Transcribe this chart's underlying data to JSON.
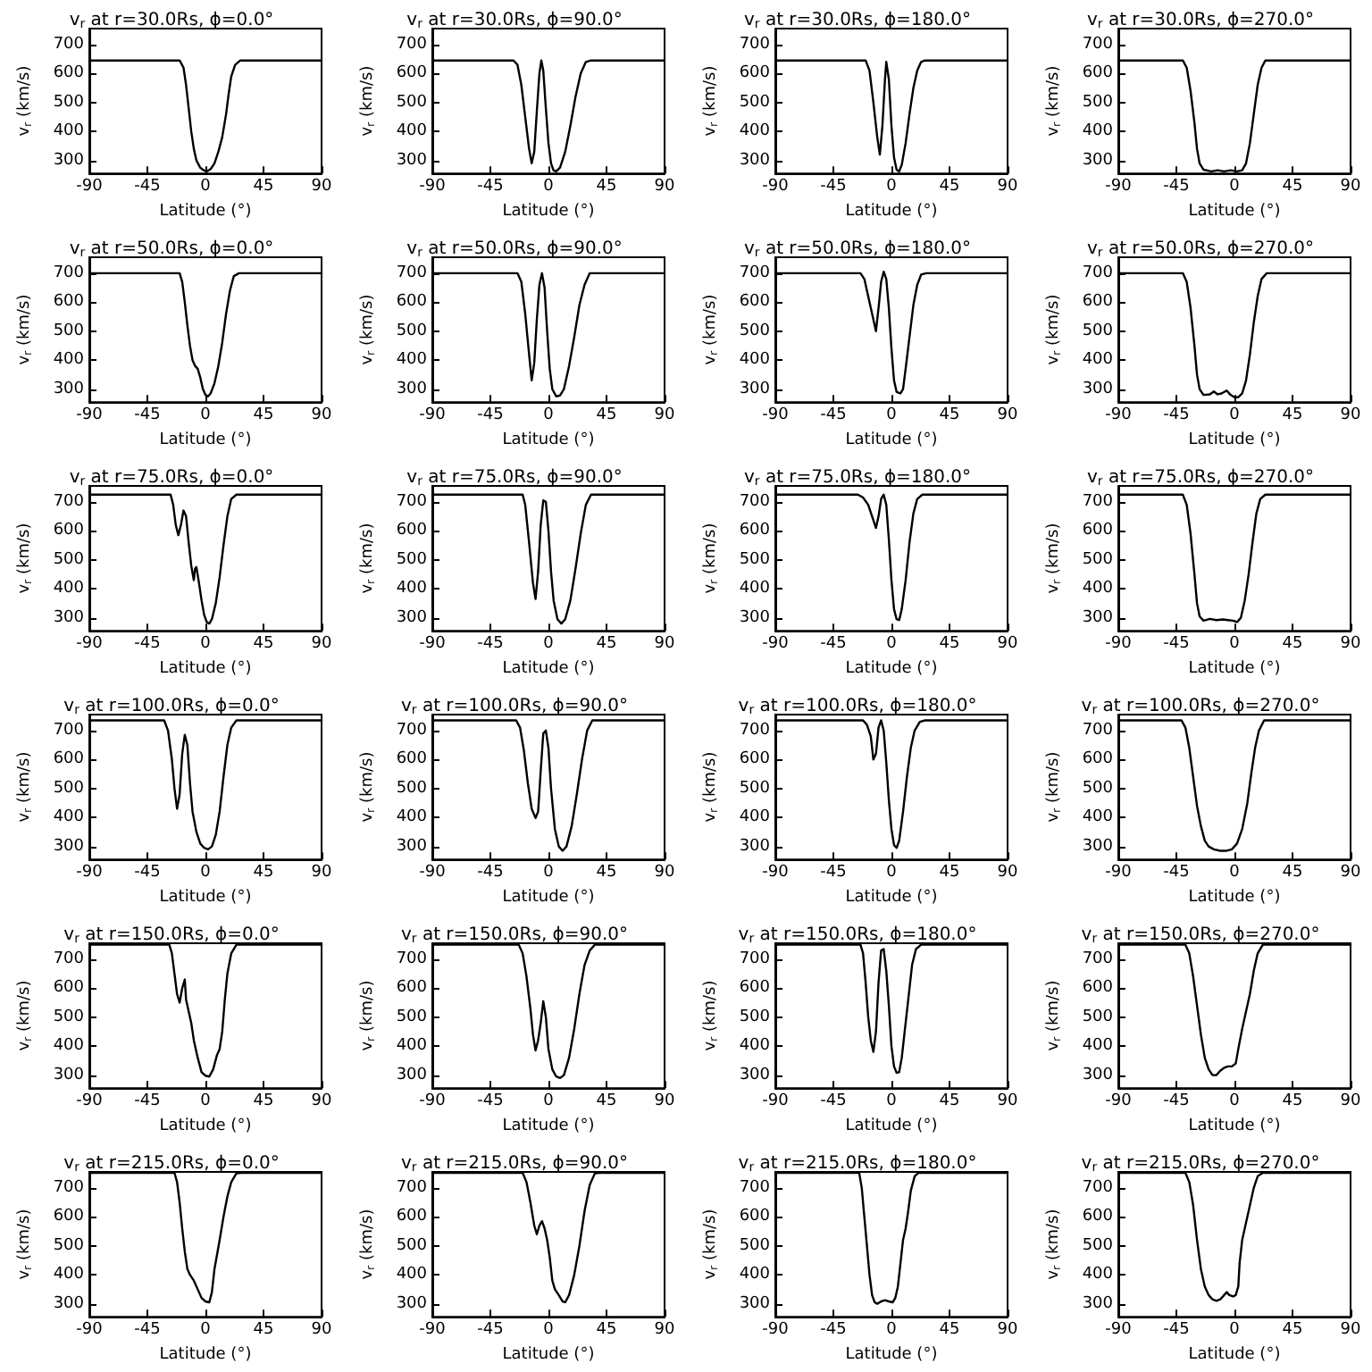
{
  "chart_data": [
    {
      "type": "line",
      "title": "v$_{r}$ at r=30.0Rs, ϕ=0.0°",
      "xlabel": "Latitude (°)",
      "ylabel": "v$_{r}$ (km/s)",
      "color": "#000000",
      "xlim": [
        -90,
        90
      ],
      "xticks": [
        -90,
        -45,
        0,
        45,
        90
      ],
      "ylim": [
        255,
        755
      ],
      "yticks": [
        300,
        400,
        500,
        600,
        700
      ],
      "x": [
        -90,
        -20,
        -17,
        -15,
        -13,
        -11,
        -9,
        -7,
        -4,
        -1,
        1,
        4,
        7,
        10,
        13,
        16,
        18,
        20,
        23,
        27,
        90
      ],
      "values": [
        645,
        645,
        620,
        560,
        480,
        400,
        340,
        300,
        275,
        265,
        262,
        270,
        290,
        330,
        380,
        460,
        530,
        590,
        630,
        645,
        645
      ]
    },
    {
      "type": "line",
      "title": "v$_{r}$ at r=30.0Rs, ϕ=90.0°",
      "xlabel": "Latitude (°)",
      "ylabel": "v$_{r}$ (km/s)",
      "color": "#000000",
      "xlim": [
        -90,
        90
      ],
      "xticks": [
        -90,
        -45,
        0,
        45,
        90
      ],
      "ylim": [
        255,
        755
      ],
      "yticks": [
        300,
        400,
        500,
        600,
        700
      ],
      "x": [
        -90,
        -27,
        -24,
        -21,
        -18,
        -15,
        -13,
        -11,
        -9,
        -7,
        -5.5,
        -4,
        -2,
        0,
        2,
        4,
        6,
        9,
        13,
        17,
        21,
        25,
        29,
        33,
        90
      ],
      "values": [
        645,
        645,
        630,
        560,
        450,
        340,
        290,
        330,
        470,
        600,
        645,
        610,
        480,
        360,
        290,
        265,
        262,
        275,
        330,
        420,
        520,
        600,
        640,
        645,
        645
      ]
    },
    {
      "type": "line",
      "title": "v$_{r}$ at r=30.0Rs, ϕ=180.0°",
      "xlabel": "Latitude (°)",
      "ylabel": "v$_{r}$ (km/s)",
      "color": "#000000",
      "xlim": [
        -90,
        90
      ],
      "xticks": [
        -90,
        -45,
        0,
        45,
        90
      ],
      "ylim": [
        255,
        755
      ],
      "yticks": [
        300,
        400,
        500,
        600,
        700
      ],
      "x": [
        -90,
        -20,
        -17,
        -14,
        -11,
        -9,
        -7,
        -5,
        -4,
        -2,
        0,
        2,
        4,
        6,
        8,
        11,
        14,
        17,
        20,
        23,
        26,
        90
      ],
      "values": [
        645,
        645,
        610,
        500,
        380,
        320,
        420,
        580,
        640,
        580,
        420,
        310,
        268,
        262,
        285,
        360,
        460,
        550,
        610,
        640,
        645,
        645
      ]
    },
    {
      "type": "line",
      "title": "v$_{r}$ at r=30.0Rs, ϕ=270.0°",
      "xlabel": "Latitude (°)",
      "ylabel": "v$_{r}$ (km/s)",
      "color": "#000000",
      "xlim": [
        -90,
        90
      ],
      "xticks": [
        -90,
        -45,
        0,
        45,
        90
      ],
      "ylim": [
        255,
        755
      ],
      "yticks": [
        300,
        400,
        500,
        600,
        700
      ],
      "x": [
        -90,
        -40,
        -37,
        -34,
        -31,
        -29,
        -27,
        -24,
        -18,
        -13,
        -8,
        -3,
        2,
        6,
        9,
        12,
        15,
        18,
        21,
        24,
        90
      ],
      "values": [
        645,
        645,
        620,
        540,
        430,
        340,
        290,
        268,
        262,
        266,
        262,
        266,
        262,
        266,
        290,
        360,
        460,
        560,
        620,
        645,
        645
      ]
    },
    {
      "type": "line",
      "title": "v$_{r}$ at r=50.0Rs, ϕ=0.0°",
      "xlabel": "Latitude (°)",
      "ylabel": "v$_{r}$ (km/s)",
      "color": "#000000",
      "xlim": [
        -90,
        90
      ],
      "xticks": [
        -90,
        -45,
        0,
        45,
        90
      ],
      "ylim": [
        255,
        755
      ],
      "yticks": [
        300,
        400,
        500,
        600,
        700
      ],
      "x": [
        -90,
        -20,
        -18,
        -16,
        -14,
        -12,
        -10,
        -8,
        -6,
        -4,
        -2,
        0,
        2,
        4,
        7,
        10,
        13,
        16,
        19,
        22,
        26,
        90
      ],
      "values": [
        700,
        700,
        670,
        600,
        520,
        450,
        400,
        380,
        370,
        340,
        300,
        280,
        275,
        285,
        320,
        380,
        460,
        560,
        640,
        690,
        700,
        700
      ]
    },
    {
      "type": "line",
      "title": "v$_{r}$ at r=50.0Rs, ϕ=90.0°",
      "xlabel": "Latitude (°)",
      "ylabel": "v$_{r}$ (km/s)",
      "color": "#000000",
      "xlim": [
        -90,
        90
      ],
      "xticks": [
        -90,
        -45,
        0,
        45,
        90
      ],
      "ylim": [
        255,
        755
      ],
      "yticks": [
        300,
        400,
        500,
        600,
        700
      ],
      "x": [
        -90,
        -24,
        -21,
        -18,
        -15,
        -13,
        -11,
        -9,
        -7,
        -5,
        -3,
        -1,
        1,
        3,
        6,
        9,
        12,
        16,
        20,
        24,
        28,
        32,
        90
      ],
      "values": [
        700,
        700,
        670,
        560,
        420,
        330,
        390,
        540,
        660,
        700,
        650,
        500,
        370,
        300,
        275,
        278,
        300,
        380,
        480,
        590,
        660,
        700,
        700
      ]
    },
    {
      "type": "line",
      "title": "v$_{r}$ at r=50.0Rs, ϕ=180.0°",
      "xlabel": "Latitude (°)",
      "ylabel": "v$_{r}$ (km/s)",
      "color": "#000000",
      "xlim": [
        -90,
        90
      ],
      "xticks": [
        -90,
        -45,
        0,
        45,
        90
      ],
      "ylim": [
        255,
        755
      ],
      "yticks": [
        300,
        400,
        500,
        600,
        700
      ],
      "x": [
        -90,
        -24,
        -21,
        -18,
        -15,
        -12,
        -10,
        -8,
        -6,
        -4,
        -2,
        0,
        2,
        4,
        7,
        9,
        11,
        14,
        17,
        20,
        23,
        27,
        90
      ],
      "values": [
        700,
        700,
        680,
        620,
        560,
        500,
        580,
        670,
        705,
        680,
        580,
        440,
        330,
        290,
        285,
        300,
        370,
        480,
        590,
        660,
        695,
        700,
        700
      ]
    },
    {
      "type": "line",
      "title": "v$_{r}$ at r=50.0Rs, ϕ=270.0°",
      "xlabel": "Latitude (°)",
      "ylabel": "v$_{r}$ (km/s)",
      "color": "#000000",
      "xlim": [
        -90,
        90
      ],
      "xticks": [
        -90,
        -45,
        0,
        45,
        90
      ],
      "ylim": [
        255,
        755
      ],
      "yticks": [
        300,
        400,
        500,
        600,
        700
      ],
      "x": [
        -90,
        -40,
        -37,
        -34,
        -31,
        -29,
        -27,
        -24,
        -19,
        -16,
        -13,
        -10,
        -6,
        -3,
        0,
        3,
        6,
        9,
        12,
        15,
        18,
        21,
        25,
        90
      ],
      "values": [
        700,
        700,
        670,
        580,
        450,
        350,
        300,
        280,
        282,
        292,
        282,
        285,
        295,
        280,
        272,
        272,
        285,
        330,
        420,
        530,
        620,
        680,
        700,
        700
      ]
    },
    {
      "type": "line",
      "title": "v$_{r}$ at r=75.0Rs, ϕ=0.0°",
      "xlabel": "Latitude (°)",
      "ylabel": "v$_{r}$ (km/s)",
      "color": "#000000",
      "xlim": [
        -90,
        90
      ],
      "xticks": [
        -90,
        -45,
        0,
        45,
        90
      ],
      "ylim": [
        255,
        755
      ],
      "yticks": [
        300,
        400,
        500,
        600,
        700
      ],
      "x": [
        -90,
        -27,
        -25,
        -23,
        -21,
        -19,
        -17,
        -15,
        -13,
        -11,
        -9,
        -8,
        -7,
        -5,
        -3,
        -1,
        1,
        3,
        5,
        8,
        11,
        14,
        17,
        20,
        24,
        90
      ],
      "values": [
        725,
        725,
        690,
        620,
        585,
        620,
        670,
        650,
        560,
        480,
        430,
        470,
        475,
        420,
        360,
        310,
        285,
        280,
        295,
        350,
        440,
        550,
        650,
        710,
        725,
        725
      ]
    },
    {
      "type": "line",
      "title": "v$_{r}$ at r=75.0Rs, ϕ=90.0°",
      "xlabel": "Latitude (°)",
      "ylabel": "v$_{r}$ (km/s)",
      "color": "#000000",
      "xlim": [
        -90,
        90
      ],
      "xticks": [
        -90,
        -45,
        0,
        45,
        90
      ],
      "ylim": [
        255,
        755
      ],
      "yticks": [
        300,
        400,
        500,
        600,
        700
      ],
      "x": [
        -90,
        -20,
        -18,
        -15,
        -12,
        -10,
        -8,
        -6,
        -4,
        -2,
        0,
        2,
        4,
        7,
        10,
        13,
        17,
        21,
        25,
        29,
        33,
        90
      ],
      "values": [
        725,
        725,
        690,
        560,
        420,
        365,
        460,
        620,
        705,
        700,
        600,
        460,
        360,
        295,
        280,
        295,
        360,
        470,
        590,
        690,
        725,
        725
      ]
    },
    {
      "type": "line",
      "title": "v$_{r}$ at r=75.0Rs, ϕ=180.0°",
      "xlabel": "Latitude (°)",
      "ylabel": "v$_{r}$ (km/s)",
      "color": "#000000",
      "xlim": [
        -90,
        90
      ],
      "xticks": [
        -90,
        -45,
        0,
        45,
        90
      ],
      "ylim": [
        255,
        755
      ],
      "yticks": [
        300,
        400,
        500,
        600,
        700
      ],
      "x": [
        -90,
        -26,
        -22,
        -18,
        -15,
        -12,
        -10,
        -8,
        -6,
        -4,
        -2,
        0,
        2,
        4,
        6,
        8,
        11,
        14,
        17,
        20,
        24,
        90
      ],
      "values": [
        725,
        725,
        715,
        690,
        650,
        610,
        650,
        710,
        725,
        690,
        570,
        430,
        330,
        295,
        292,
        330,
        430,
        560,
        660,
        710,
        725,
        725
      ]
    },
    {
      "type": "line",
      "title": "v$_{r}$ at r=75.0Rs, ϕ=270.0°",
      "xlabel": "Latitude (°)",
      "ylabel": "v$_{r}$ (km/s)",
      "color": "#000000",
      "xlim": [
        -90,
        90
      ],
      "xticks": [
        -90,
        -45,
        0,
        45,
        90
      ],
      "ylim": [
        255,
        755
      ],
      "yticks": [
        300,
        400,
        500,
        600,
        700
      ],
      "x": [
        -90,
        -40,
        -37,
        -34,
        -31,
        -29,
        -27,
        -24,
        -19,
        -14,
        -9,
        -5,
        -1,
        2,
        5,
        8,
        11,
        14,
        17,
        20,
        24,
        90
      ],
      "values": [
        725,
        725,
        690,
        590,
        450,
        350,
        305,
        290,
        296,
        292,
        294,
        292,
        290,
        285,
        300,
        360,
        450,
        560,
        660,
        710,
        725,
        725
      ]
    },
    {
      "type": "line",
      "title": "v$_{r}$ at r=100.0Rs, ϕ=0.0°",
      "xlabel": "Latitude (°)",
      "ylabel": "v$_{r}$ (km/s)",
      "color": "#000000",
      "xlim": [
        -90,
        90
      ],
      "xticks": [
        -90,
        -45,
        0,
        45,
        90
      ],
      "ylim": [
        255,
        755
      ],
      "yticks": [
        300,
        400,
        500,
        600,
        700
      ],
      "x": [
        -90,
        -32,
        -29,
        -26,
        -24,
        -22,
        -20,
        -18,
        -16,
        -14,
        -12,
        -10,
        -7,
        -4,
        -1,
        2,
        5,
        8,
        11,
        14,
        17,
        20,
        24,
        90
      ],
      "values": [
        735,
        735,
        700,
        600,
        500,
        430,
        480,
        620,
        685,
        650,
        520,
        420,
        350,
        310,
        295,
        290,
        300,
        340,
        420,
        540,
        650,
        710,
        735,
        735
      ]
    },
    {
      "type": "line",
      "title": "v$_{r}$ at r=100.0Rs, ϕ=90.0°",
      "xlabel": "Latitude (°)",
      "ylabel": "v$_{r}$ (km/s)",
      "color": "#000000",
      "xlim": [
        -90,
        90
      ],
      "xticks": [
        -90,
        -45,
        0,
        45,
        90
      ],
      "ylim": [
        255,
        755
      ],
      "yticks": [
        300,
        400,
        500,
        600,
        700
      ],
      "x": [
        -90,
        -25,
        -22,
        -19,
        -16,
        -13,
        -10,
        -8,
        -6,
        -4,
        -2,
        0,
        2,
        5,
        8,
        11,
        14,
        18,
        22,
        26,
        30,
        34,
        90
      ],
      "values": [
        735,
        735,
        710,
        630,
        520,
        430,
        398,
        420,
        560,
        690,
        700,
        640,
        500,
        360,
        300,
        285,
        300,
        370,
        480,
        600,
        700,
        735,
        735
      ]
    },
    {
      "type": "line",
      "title": "v$_{r}$ at r=100.0Rs, ϕ=180.0°",
      "xlabel": "Latitude (°)",
      "ylabel": "v$_{r}$ (km/s)",
      "color": "#000000",
      "xlim": [
        -90,
        90
      ],
      "xticks": [
        -90,
        -45,
        0,
        45,
        90
      ],
      "ylim": [
        255,
        755
      ],
      "yticks": [
        300,
        400,
        500,
        600,
        700
      ],
      "x": [
        -90,
        -22,
        -19,
        -16,
        -14,
        -12,
        -10,
        -8,
        -6,
        -4,
        -2,
        0,
        2,
        4,
        6,
        9,
        12,
        15,
        18,
        22,
        26,
        90
      ],
      "values": [
        735,
        735,
        720,
        680,
        600,
        620,
        710,
        735,
        700,
        590,
        460,
        360,
        305,
        295,
        320,
        420,
        540,
        640,
        700,
        730,
        735,
        735
      ]
    },
    {
      "type": "line",
      "title": "v$_{r}$ at r=100.0Rs, ϕ=270.0°",
      "xlabel": "Latitude (°)",
      "ylabel": "v$_{r}$ (km/s)",
      "color": "#000000",
      "xlim": [
        -90,
        90
      ],
      "xticks": [
        -90,
        -45,
        0,
        45,
        90
      ],
      "ylim": [
        255,
        755
      ],
      "yticks": [
        300,
        400,
        500,
        600,
        700
      ],
      "x": [
        -90,
        -41,
        -38,
        -35,
        -32,
        -29,
        -26,
        -23,
        -20,
        -16,
        -11,
        -6,
        -2,
        2,
        6,
        10,
        13,
        16,
        19,
        23,
        90
      ],
      "values": [
        735,
        735,
        710,
        640,
        540,
        440,
        370,
        320,
        300,
        290,
        285,
        285,
        290,
        310,
        360,
        450,
        550,
        640,
        700,
        735,
        735
      ]
    },
    {
      "type": "line",
      "title": "v$_{r}$ at r=150.0Rs, ϕ=0.0°",
      "xlabel": "Latitude (°)",
      "ylabel": "v$_{r}$ (km/s)",
      "color": "#000000",
      "xlim": [
        -90,
        90
      ],
      "xticks": [
        -90,
        -45,
        0,
        45,
        90
      ],
      "ylim": [
        255,
        755
      ],
      "yticks": [
        300,
        400,
        500,
        600,
        700
      ],
      "x": [
        -90,
        -28,
        -26,
        -24,
        -22,
        -20,
        -18,
        -16,
        -15,
        -13,
        -11,
        -9,
        -6,
        -3,
        0,
        3,
        6,
        9,
        11,
        13,
        15,
        17,
        20,
        24,
        90
      ],
      "values": [
        750,
        750,
        720,
        650,
        580,
        550,
        600,
        630,
        560,
        520,
        480,
        420,
        360,
        310,
        298,
        295,
        320,
        370,
        390,
        450,
        560,
        650,
        720,
        750,
        750
      ]
    },
    {
      "type": "line",
      "title": "v$_{r}$ at r=150.0Rs, ϕ=90.0°",
      "xlabel": "Latitude (°)",
      "ylabel": "v$_{r}$ (km/s)",
      "color": "#000000",
      "xlim": [
        -90,
        90
      ],
      "xticks": [
        -90,
        -45,
        0,
        45,
        90
      ],
      "ylim": [
        255,
        755
      ],
      "yticks": [
        300,
        400,
        500,
        600,
        700
      ],
      "x": [
        -90,
        -23,
        -20,
        -17,
        -14,
        -12,
        -10,
        -8,
        -6,
        -4,
        -2,
        0,
        3,
        6,
        9,
        12,
        16,
        20,
        24,
        28,
        32,
        36,
        90
      ],
      "values": [
        750,
        750,
        720,
        640,
        530,
        440,
        385,
        420,
        480,
        555,
        500,
        390,
        320,
        295,
        290,
        300,
        360,
        460,
        580,
        680,
        730,
        750,
        750
      ]
    },
    {
      "type": "line",
      "title": "v$_{r}$ at r=150.0Rs, ϕ=180.0°",
      "xlabel": "Latitude (°)",
      "ylabel": "v$_{r}$ (km/s)",
      "color": "#000000",
      "xlim": [
        -90,
        90
      ],
      "xticks": [
        -90,
        -45,
        0,
        45,
        90
      ],
      "ylim": [
        255,
        755
      ],
      "yticks": [
        300,
        400,
        500,
        600,
        700
      ],
      "x": [
        -90,
        -24,
        -22,
        -20,
        -18,
        -16,
        -14,
        -12,
        -10,
        -8,
        -6,
        -4,
        -2,
        0,
        2,
        4,
        6,
        8,
        10,
        13,
        16,
        19,
        23,
        90
      ],
      "values": [
        750,
        750,
        720,
        620,
        500,
        420,
        380,
        450,
        620,
        730,
        735,
        660,
        540,
        400,
        330,
        308,
        310,
        360,
        440,
        560,
        680,
        735,
        750,
        750
      ]
    },
    {
      "type": "line",
      "title": "v$_{r}$ at r=150.0Rs, ϕ=270.0°",
      "xlabel": "Latitude (°)",
      "ylabel": "v$_{r}$ (km/s)",
      "color": "#000000",
      "xlim": [
        -90,
        90
      ],
      "xticks": [
        -90,
        -45,
        0,
        45,
        90
      ],
      "ylim": [
        255,
        755
      ],
      "yticks": [
        300,
        400,
        500,
        600,
        700
      ],
      "x": [
        -90,
        -38,
        -35,
        -32,
        -29,
        -26,
        -23,
        -20,
        -17,
        -14,
        -11,
        -8,
        -5,
        -2,
        1,
        3,
        6,
        9,
        12,
        15,
        18,
        22,
        90
      ],
      "values": [
        750,
        750,
        720,
        640,
        540,
        440,
        360,
        320,
        300,
        300,
        315,
        325,
        330,
        330,
        340,
        390,
        460,
        520,
        580,
        660,
        720,
        750,
        750
      ]
    },
    {
      "type": "line",
      "title": "v$_{r}$ at r=215.0Rs, ϕ=0.0°",
      "xlabel": "Latitude (°)",
      "ylabel": "v$_{r}$ (km/s)",
      "color": "#000000",
      "xlim": [
        -90,
        90
      ],
      "xticks": [
        -90,
        -45,
        0,
        45,
        90
      ],
      "ylim": [
        255,
        755
      ],
      "yticks": [
        300,
        400,
        500,
        600,
        700
      ],
      "x": [
        -90,
        -24,
        -22,
        -20,
        -18,
        -16,
        -14,
        -12,
        -9,
        -6,
        -3,
        0,
        3,
        5,
        7,
        9,
        11,
        14,
        17,
        20,
        24,
        28,
        90
      ],
      "values": [
        752,
        752,
        720,
        650,
        560,
        480,
        420,
        400,
        380,
        350,
        320,
        308,
        305,
        340,
        420,
        470,
        520,
        600,
        670,
        720,
        750,
        752,
        752
      ]
    },
    {
      "type": "line",
      "title": "v$_{r}$ at r=215.0Rs, ϕ=90.0°",
      "xlabel": "Latitude (°)",
      "ylabel": "v$_{r}$ (km/s)",
      "color": "#000000",
      "xlim": [
        -90,
        90
      ],
      "xticks": [
        -90,
        -45,
        0,
        45,
        90
      ],
      "ylim": [
        255,
        755
      ],
      "yticks": [
        300,
        400,
        500,
        600,
        700
      ],
      "x": [
        -90,
        -20,
        -17,
        -14,
        -11,
        -9,
        -7,
        -5,
        -3,
        -1,
        1,
        3,
        5,
        8,
        11,
        13,
        16,
        20,
        24,
        28,
        32,
        36,
        40,
        90
      ],
      "values": [
        752,
        752,
        720,
        650,
        570,
        540,
        570,
        585,
        560,
        520,
        460,
        380,
        350,
        330,
        308,
        305,
        330,
        400,
        500,
        620,
        710,
        750,
        752,
        752
      ]
    },
    {
      "type": "line",
      "title": "v$_{r}$ at r=215.0Rs, ϕ=180.0°",
      "xlabel": "Latitude (°)",
      "ylabel": "v$_{r}$ (km/s)",
      "color": "#000000",
      "xlim": [
        -90,
        90
      ],
      "xticks": [
        -90,
        -45,
        0,
        45,
        90
      ],
      "ylim": [
        255,
        755
      ],
      "yticks": [
        300,
        400,
        500,
        600,
        700
      ],
      "x": [
        -90,
        -25,
        -23,
        -21,
        -19,
        -17,
        -15,
        -13,
        -11,
        -8,
        -5,
        -2,
        1,
        3,
        5,
        7,
        9,
        11,
        13,
        15,
        18,
        21,
        90
      ],
      "values": [
        752,
        752,
        700,
        600,
        500,
        400,
        330,
        305,
        300,
        308,
        312,
        308,
        305,
        320,
        360,
        440,
        520,
        560,
        620,
        690,
        740,
        752,
        752
      ]
    },
    {
      "type": "line",
      "title": "v$_{r}$ at r=215.0Rs, ϕ=270.0°",
      "xlabel": "Latitude (°)",
      "ylabel": "v$_{r}$ (km/s)",
      "color": "#000000",
      "xlim": [
        -90,
        90
      ],
      "xticks": [
        -90,
        -45,
        0,
        45,
        90
      ],
      "ylim": [
        255,
        755
      ],
      "yticks": [
        300,
        400,
        500,
        600,
        700
      ],
      "x": [
        -90,
        -38,
        -35,
        -32,
        -29,
        -26,
        -23,
        -20,
        -17,
        -14,
        -11,
        -8,
        -6,
        -4,
        -1,
        1,
        3,
        4,
        6,
        9,
        12,
        15,
        18,
        22,
        90
      ],
      "values": [
        752,
        752,
        720,
        640,
        520,
        420,
        360,
        330,
        315,
        310,
        315,
        330,
        340,
        330,
        325,
        330,
        360,
        440,
        520,
        580,
        640,
        700,
        740,
        752,
        752
      ]
    }
  ]
}
